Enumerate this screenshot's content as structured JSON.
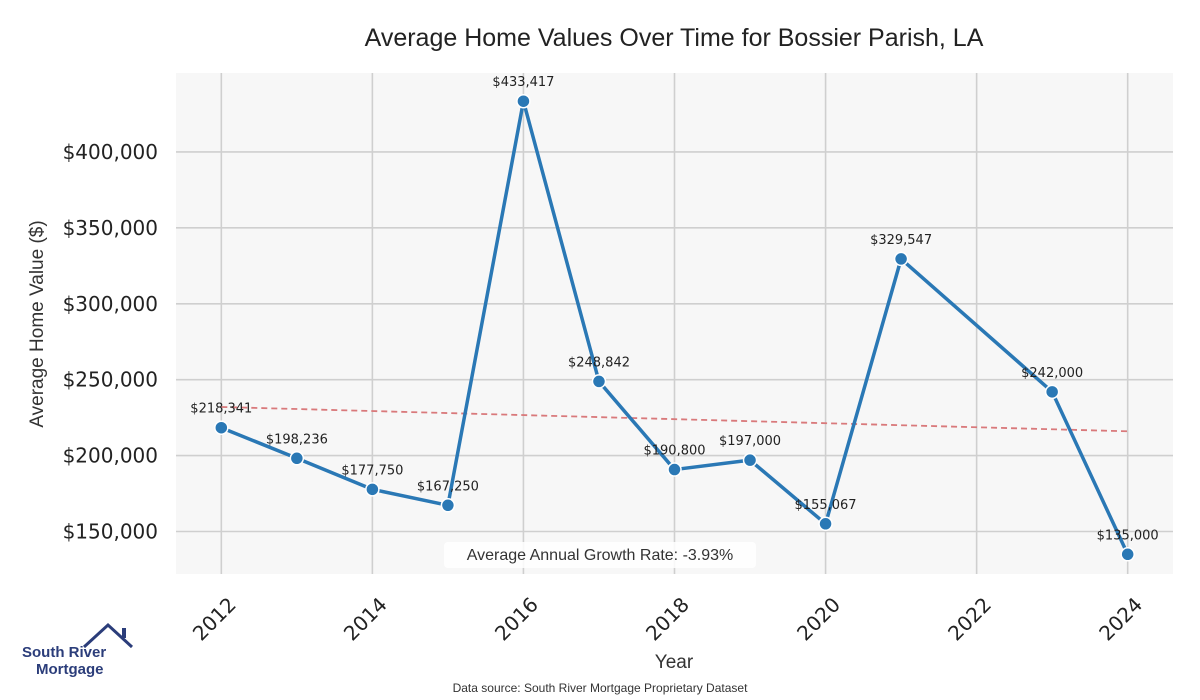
{
  "chart_data": {
    "type": "line",
    "title": "Average Home Values Over Time for Bossier Parish, LA",
    "xlabel": "Year",
    "ylabel": "Average Home Value ($)",
    "x": [
      2012,
      2013,
      2014,
      2015,
      2016,
      2017,
      2018,
      2019,
      2020,
      2021,
      2023,
      2024
    ],
    "values": [
      218341,
      198236,
      177750,
      167250,
      433417,
      248842,
      190800,
      197000,
      155067,
      329547,
      242000,
      135000
    ],
    "data_labels": [
      "$218,341",
      "$198,236",
      "$177,750",
      "$167,250",
      "$433,417",
      "$248,842",
      "$190,800",
      "$197,000",
      "$155,067",
      "$329,547",
      "$242,000",
      "$135,000"
    ],
    "trend": {
      "start": [
        2012,
        232000
      ],
      "end": [
        2024,
        216000
      ],
      "color": "#d9797b",
      "style": "dashed"
    },
    "xlim": [
      2011.4,
      2024.6
    ],
    "ylim": [
      122000,
      452000
    ],
    "xticks": [
      2012,
      2014,
      2016,
      2018,
      2020,
      2022,
      2024
    ],
    "xtick_labels": [
      "2012",
      "2014",
      "2016",
      "2018",
      "2020",
      "2022",
      "2024"
    ],
    "yticks": [
      150000,
      200000,
      250000,
      300000,
      350000,
      400000
    ],
    "ytick_labels": [
      "$150,000",
      "$200,000",
      "$250,000",
      "$300,000",
      "$350,000",
      "$400,000"
    ],
    "grid": true,
    "line_color": "#2a78b5",
    "plot_background": "#f7f7f7",
    "annotation": "Average Annual Growth Rate: -3.93%"
  },
  "footer": {
    "source": "Data source: South River Mortgage Proprietary Dataset"
  },
  "logo": {
    "line1": "South River",
    "line2": "Mortgage",
    "color": "#2b3d7a"
  }
}
